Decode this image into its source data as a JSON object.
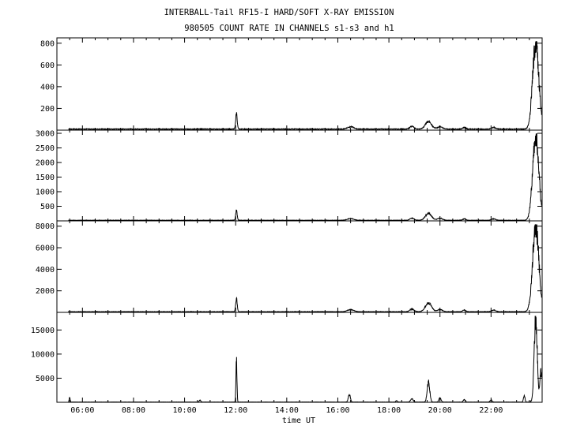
{
  "chart_data": {
    "type": "line",
    "title": "INTERBALL-Tail RF15-I HARD/SOFT X-RAY EMISSION",
    "subtitle": "980505  COUNT RATE IN CHANNELS s1-s3 and h1",
    "xlabel": "time UT",
    "x_ticks": [
      "06:00",
      "08:00",
      "10:00",
      "12:00",
      "14:00",
      "16:00",
      "18:00",
      "20:00",
      "22:00"
    ],
    "xlim_hours": [
      5.0,
      24.0
    ],
    "panels": [
      {
        "name": "s1",
        "ylim": [
          0,
          820
        ],
        "yticks": [
          200,
          400,
          600,
          800
        ],
        "baseline": 10,
        "events": [
          {
            "t": 12.03,
            "peak": 140,
            "width": 0.03
          },
          {
            "t": 16.5,
            "peak": 20,
            "width": 0.12
          },
          {
            "t": 18.9,
            "peak": 25,
            "width": 0.08
          },
          {
            "t": 19.55,
            "peak": 70,
            "width": 0.12
          },
          {
            "t": 20.0,
            "peak": 20,
            "width": 0.1
          },
          {
            "t": 20.95,
            "peak": 15,
            "width": 0.06
          },
          {
            "t": 22.1,
            "peak": 15,
            "width": 0.08
          },
          {
            "t": 23.75,
            "peak": 790,
            "width": 0.12
          }
        ]
      },
      {
        "name": "s2",
        "ylim": [
          0,
          3000
        ],
        "yticks": [
          500,
          1000,
          1500,
          2000,
          2500,
          3000
        ],
        "baseline": 20,
        "events": [
          {
            "t": 12.03,
            "peak": 320,
            "width": 0.03
          },
          {
            "t": 16.5,
            "peak": 60,
            "width": 0.12
          },
          {
            "t": 18.9,
            "peak": 70,
            "width": 0.08
          },
          {
            "t": 19.55,
            "peak": 240,
            "width": 0.12
          },
          {
            "t": 20.0,
            "peak": 70,
            "width": 0.1
          },
          {
            "t": 20.95,
            "peak": 50,
            "width": 0.06
          },
          {
            "t": 22.1,
            "peak": 50,
            "width": 0.08
          },
          {
            "t": 23.75,
            "peak": 2850,
            "width": 0.12
          }
        ]
      },
      {
        "name": "s3",
        "ylim": [
          0,
          8200
        ],
        "yticks": [
          2000,
          4000,
          6000,
          8000
        ],
        "baseline": 60,
        "events": [
          {
            "t": 12.03,
            "peak": 1200,
            "width": 0.03
          },
          {
            "t": 16.5,
            "peak": 200,
            "width": 0.12
          },
          {
            "t": 18.9,
            "peak": 250,
            "width": 0.08
          },
          {
            "t": 19.55,
            "peak": 800,
            "width": 0.12
          },
          {
            "t": 20.0,
            "peak": 200,
            "width": 0.1
          },
          {
            "t": 20.95,
            "peak": 150,
            "width": 0.06
          },
          {
            "t": 22.1,
            "peak": 150,
            "width": 0.08
          },
          {
            "t": 23.75,
            "peak": 7900,
            "width": 0.12
          }
        ]
      },
      {
        "name": "h1",
        "ylim": [
          0,
          18000
        ],
        "yticks": [
          5000,
          10000,
          15000
        ],
        "baseline": 50,
        "events": [
          {
            "t": 5.5,
            "peak": 900,
            "width": 0.02
          },
          {
            "t": 10.6,
            "peak": 400,
            "width": 0.03
          },
          {
            "t": 12.03,
            "peak": 8500,
            "width": 0.02
          },
          {
            "t": 16.45,
            "peak": 1600,
            "width": 0.04
          },
          {
            "t": 18.3,
            "peak": 300,
            "width": 0.03
          },
          {
            "t": 18.9,
            "peak": 700,
            "width": 0.05
          },
          {
            "t": 19.55,
            "peak": 4200,
            "width": 0.05
          },
          {
            "t": 20.0,
            "peak": 900,
            "width": 0.04
          },
          {
            "t": 20.95,
            "peak": 500,
            "width": 0.04
          },
          {
            "t": 22.0,
            "peak": 400,
            "width": 0.04
          },
          {
            "t": 23.3,
            "peak": 1300,
            "width": 0.03
          },
          {
            "t": 23.75,
            "peak": 17000,
            "width": 0.06
          },
          {
            "t": 23.95,
            "peak": 6000,
            "width": 0.04
          }
        ]
      }
    ]
  }
}
